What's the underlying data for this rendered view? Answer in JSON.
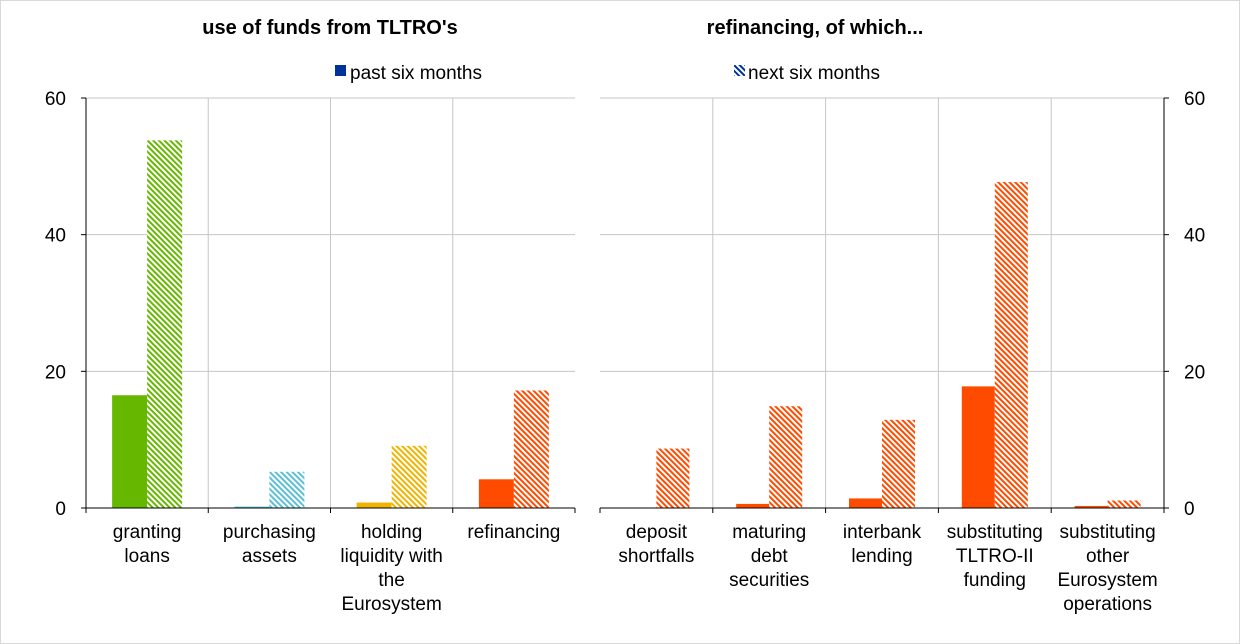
{
  "chart_data": [
    {
      "type": "bar",
      "title": "use of funds from TLTRO's",
      "categories": [
        [
          "granting",
          "loans"
        ],
        [
          "purchasing",
          "assets"
        ],
        [
          "holding",
          "liquidity with",
          "the",
          "Eurosystem"
        ],
        [
          "refinancing"
        ]
      ],
      "series": [
        {
          "name": "past six months",
          "values": [
            16.5,
            0.2,
            0.8,
            4.2
          ]
        },
        {
          "name": "next six months",
          "values": [
            53.8,
            5.3,
            9.1,
            17.2
          ]
        }
      ],
      "bar_colors": [
        "#66b700",
        "#5bc0d4",
        "#f0b400",
        "#ff4b00"
      ],
      "ylim": [
        0,
        60
      ],
      "yticks": [
        "60",
        "40",
        "20",
        "0"
      ],
      "axis": "left",
      "grid": true
    },
    {
      "type": "bar",
      "title": "refinancing, of which...",
      "categories": [
        [
          "deposit",
          "shortfalls"
        ],
        [
          "maturing",
          "debt",
          "securities"
        ],
        [
          "interbank",
          "lending"
        ],
        [
          "substituting",
          "TLTRO-II",
          "funding"
        ],
        [
          "substituting",
          "other",
          "Eurosystem",
          "operations"
        ]
      ],
      "series": [
        {
          "name": "past six months",
          "values": [
            0,
            0.6,
            1.4,
            17.8,
            0.3
          ]
        },
        {
          "name": "next six months",
          "values": [
            8.7,
            14.9,
            12.9,
            47.7,
            1.1
          ]
        }
      ],
      "bar_colors": [
        "#ff4b00",
        "#ff4b00",
        "#ff4b00",
        "#ff4b00",
        "#ff4b00"
      ],
      "ylim": [
        0,
        60
      ],
      "yticks": [
        "60",
        "40",
        "20",
        "0"
      ],
      "axis": "right",
      "grid": true
    }
  ],
  "legend": {
    "placement": "top-center",
    "items": [
      {
        "label": "past six months",
        "style": "solid",
        "color": "#003299"
      },
      {
        "label": "next six months",
        "style": "hatched",
        "color": "#003299"
      }
    ]
  }
}
